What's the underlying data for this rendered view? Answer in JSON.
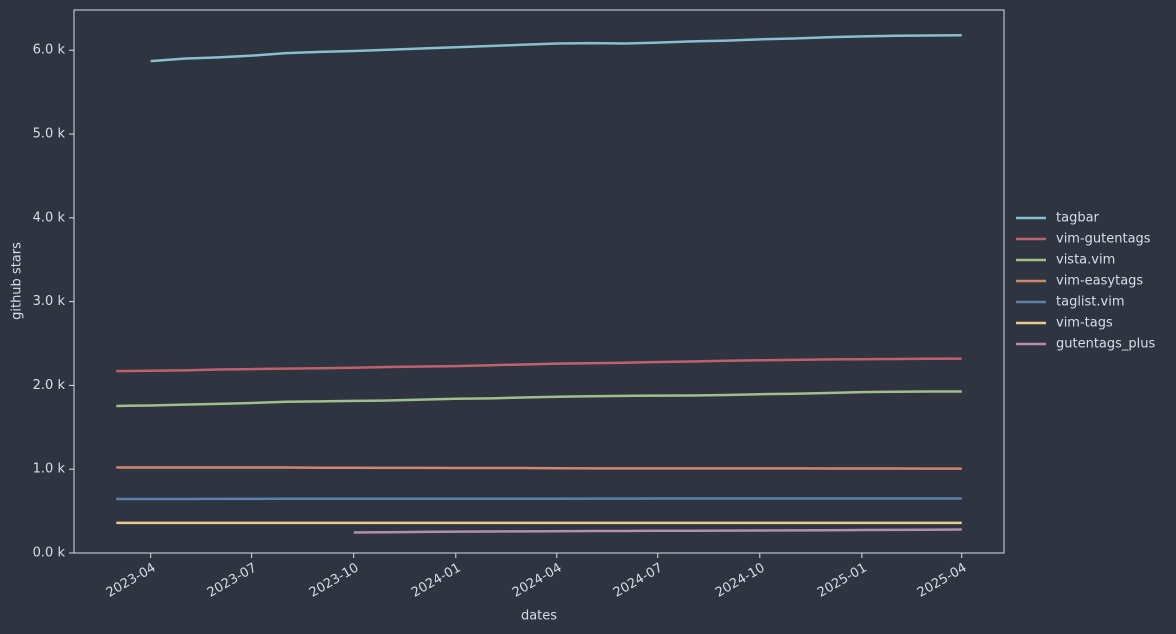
{
  "chart_data": {
    "type": "line",
    "xlabel": "dates",
    "ylabel": "github stars",
    "x": [
      "2023-03",
      "2023-04",
      "2023-05",
      "2023-06",
      "2023-07",
      "2023-08",
      "2023-09",
      "2023-10",
      "2023-11",
      "2023-12",
      "2024-01",
      "2024-02",
      "2024-03",
      "2024-04",
      "2024-05",
      "2024-06",
      "2024-07",
      "2024-08",
      "2024-09",
      "2024-10",
      "2024-11",
      "2024-12",
      "2025-01",
      "2025-02",
      "2025-03",
      "2025-04"
    ],
    "xticks": [
      "2023-04",
      "2023-07",
      "2023-10",
      "2024-01",
      "2024-04",
      "2024-07",
      "2024-10",
      "2025-01",
      "2025-04"
    ],
    "ylim": [
      0,
      6480
    ],
    "yticks": [
      {
        "value": 0,
        "label": "0.0 k"
      },
      {
        "value": 1000,
        "label": "1.0 k"
      },
      {
        "value": 2000,
        "label": "2.0 k"
      },
      {
        "value": 3000,
        "label": "3.0 k"
      },
      {
        "value": 4000,
        "label": "4.0 k"
      },
      {
        "value": 5000,
        "label": "5.0 k"
      },
      {
        "value": 6000,
        "label": "6.0 k"
      }
    ],
    "legend": "right",
    "series": [
      {
        "name": "tagbar",
        "color": "#88c0d0",
        "values": [
          null,
          5870,
          5900,
          5915,
          5935,
          5965,
          5980,
          5990,
          6005,
          6020,
          6035,
          6050,
          6065,
          6080,
          6085,
          6080,
          6090,
          6105,
          6115,
          6130,
          6140,
          6155,
          6165,
          6172,
          6175,
          6178
        ]
      },
      {
        "name": "vim-gutentags",
        "color": "#bf616a",
        "values": [
          2170,
          2175,
          2180,
          2190,
          2195,
          2200,
          2205,
          2210,
          2220,
          2225,
          2230,
          2240,
          2250,
          2260,
          2265,
          2270,
          2280,
          2285,
          2295,
          2300,
          2305,
          2310,
          2312,
          2315,
          2318,
          2320
        ]
      },
      {
        "name": "vista.vim",
        "color": "#a3be8c",
        "values": [
          1755,
          1760,
          1770,
          1780,
          1790,
          1805,
          1810,
          1815,
          1820,
          1830,
          1840,
          1845,
          1855,
          1865,
          1870,
          1875,
          1878,
          1880,
          1885,
          1895,
          1900,
          1910,
          1920,
          1925,
          1928,
          1928
        ]
      },
      {
        "name": "vim-easytags",
        "color": "#d08770",
        "values": [
          1020,
          1020,
          1020,
          1020,
          1020,
          1020,
          1018,
          1017,
          1016,
          1016,
          1015,
          1014,
          1014,
          1012,
          1010,
          1010,
          1010,
          1010,
          1010,
          1010,
          1010,
          1009,
          1008,
          1008,
          1007,
          1007
        ]
      },
      {
        "name": "taglist.vim",
        "color": "#5e81ac",
        "values": [
          645,
          645,
          645,
          646,
          646,
          647,
          647,
          647,
          648,
          648,
          648,
          648,
          648,
          648,
          649,
          649,
          650,
          650,
          650,
          650,
          650,
          650,
          650,
          650,
          650,
          650
        ]
      },
      {
        "name": "vim-tags",
        "color": "#ebcb8b",
        "values": [
          360,
          360,
          360,
          360,
          360,
          360,
          360,
          360,
          360,
          360,
          360,
          360,
          360,
          360,
          360,
          360,
          360,
          360,
          360,
          360,
          360,
          360,
          360,
          360,
          360,
          360
        ]
      },
      {
        "name": "gutentags_plus",
        "color": "#b48ead",
        "values": [
          null,
          null,
          null,
          null,
          null,
          null,
          null,
          245,
          248,
          252,
          255,
          257,
          258,
          260,
          262,
          263,
          265,
          266,
          267,
          268,
          270,
          272,
          274,
          276,
          278,
          280
        ]
      }
    ]
  }
}
